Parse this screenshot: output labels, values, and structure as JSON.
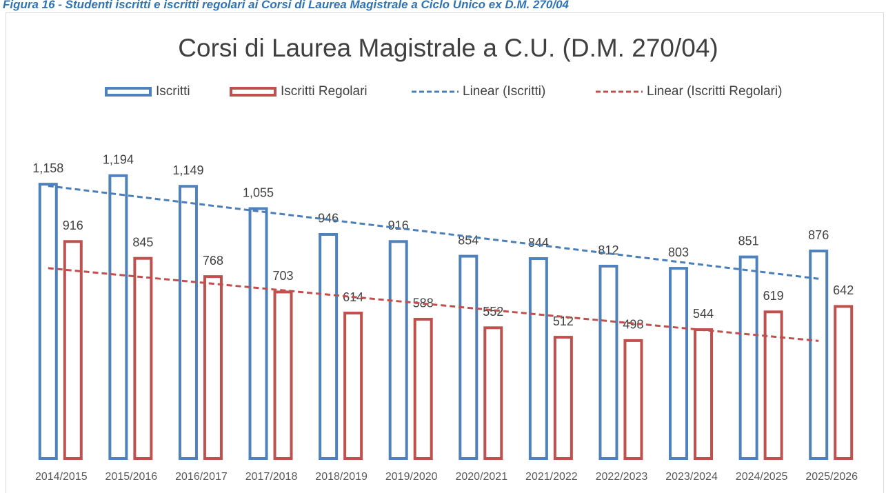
{
  "chart_data": {
    "type": "bar",
    "caption": "Figura 16 - Studenti iscritti e iscritti regolari ai Corsi di Laurea Magistrale a Ciclo Unico ex D.M. 270/04",
    "title": "Corsi di Laurea Magistrale a C.U. (D.M. 270/04)",
    "categories": [
      "2014/2015",
      "2015/2016",
      "2016/2017",
      "2017/2018",
      "2018/2019",
      "2019/2020",
      "2020/2021",
      "2021/2022",
      "2022/2023",
      "2023/2024",
      "2024/2025",
      "2025/2026"
    ],
    "series": [
      {
        "name": "Iscritti",
        "color": "#4f81bd",
        "values": [
          1158,
          1194,
          1149,
          1055,
          946,
          916,
          854,
          844,
          812,
          803,
          851,
          876
        ],
        "value_labels": [
          "1,158",
          "1,194",
          "1,149",
          "1,055",
          "946",
          "916",
          "854",
          "844",
          "812",
          "803",
          "851",
          "876"
        ],
        "trendline": {
          "name": "Linear (Iscritti)",
          "type": "linear",
          "color": "#4a7ebb"
        }
      },
      {
        "name": "Iscritti Regolari",
        "color": "#c0504d",
        "values": [
          916,
          845,
          768,
          703,
          614,
          588,
          552,
          512,
          498,
          544,
          619,
          642
        ],
        "value_labels": [
          "916",
          "845",
          "768",
          "703",
          "614",
          "588",
          "552",
          "512",
          "498",
          "544",
          "619",
          "642"
        ],
        "trendline": {
          "name": "Linear (Iscritti Regolari)",
          "type": "linear",
          "color": "#c0504d"
        }
      }
    ],
    "ylim": [
      0,
      1400
    ],
    "legend": "top"
  }
}
